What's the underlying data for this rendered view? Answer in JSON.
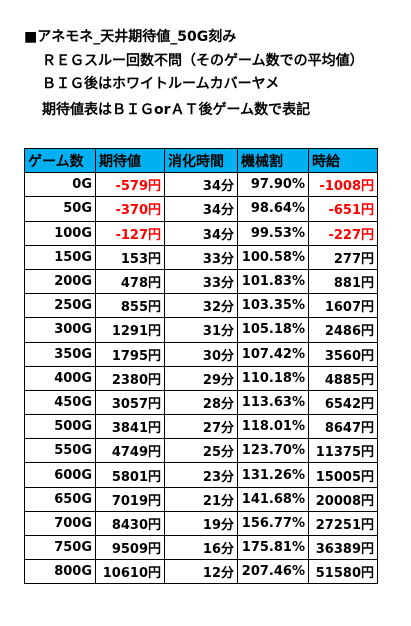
{
  "notes": {
    "line1": "■アネモネ_天井期待値_50G刻み",
    "line2": "ＲＥＧスルー回数不問（そのゲーム数での平均値）",
    "line3": "ＢＩＧ後はホワイトルームカバーヤメ",
    "line4": "期待値表はＢＩＧorＡＴ後ゲーム数で表記"
  },
  "table": {
    "headers": [
      "ゲーム数",
      "期待値",
      "消化時間",
      "機械割",
      "時給"
    ],
    "rows": [
      {
        "games": "0G",
        "ev": "-579円",
        "time": "34分",
        "payout": "97.90%",
        "hourly": "-1008円",
        "ev_neg": true,
        "hourly_neg": true
      },
      {
        "games": "50G",
        "ev": "-370円",
        "time": "34分",
        "payout": "98.64%",
        "hourly": "-651円",
        "ev_neg": true,
        "hourly_neg": true
      },
      {
        "games": "100G",
        "ev": "-127円",
        "time": "34分",
        "payout": "99.53%",
        "hourly": "-227円",
        "ev_neg": true,
        "hourly_neg": true
      },
      {
        "games": "150G",
        "ev": "153円",
        "time": "33分",
        "payout": "100.58%",
        "hourly": "277円",
        "ev_neg": false,
        "hourly_neg": false
      },
      {
        "games": "200G",
        "ev": "478円",
        "time": "33分",
        "payout": "101.83%",
        "hourly": "881円",
        "ev_neg": false,
        "hourly_neg": false
      },
      {
        "games": "250G",
        "ev": "855円",
        "time": "32分",
        "payout": "103.35%",
        "hourly": "1607円",
        "ev_neg": false,
        "hourly_neg": false
      },
      {
        "games": "300G",
        "ev": "1291円",
        "time": "31分",
        "payout": "105.18%",
        "hourly": "2486円",
        "ev_neg": false,
        "hourly_neg": false
      },
      {
        "games": "350G",
        "ev": "1795円",
        "time": "30分",
        "payout": "107.42%",
        "hourly": "3560円",
        "ev_neg": false,
        "hourly_neg": false
      },
      {
        "games": "400G",
        "ev": "2380円",
        "time": "29分",
        "payout": "110.18%",
        "hourly": "4885円",
        "ev_neg": false,
        "hourly_neg": false
      },
      {
        "games": "450G",
        "ev": "3057円",
        "time": "28分",
        "payout": "113.63%",
        "hourly": "6542円",
        "ev_neg": false,
        "hourly_neg": false
      },
      {
        "games": "500G",
        "ev": "3841円",
        "time": "27分",
        "payout": "118.01%",
        "hourly": "8647円",
        "ev_neg": false,
        "hourly_neg": false
      },
      {
        "games": "550G",
        "ev": "4749円",
        "time": "25分",
        "payout": "123.70%",
        "hourly": "11375円",
        "ev_neg": false,
        "hourly_neg": false
      },
      {
        "games": "600G",
        "ev": "5801円",
        "time": "23分",
        "payout": "131.26%",
        "hourly": "15005円",
        "ev_neg": false,
        "hourly_neg": false
      },
      {
        "games": "650G",
        "ev": "7019円",
        "time": "21分",
        "payout": "141.68%",
        "hourly": "20008円",
        "ev_neg": false,
        "hourly_neg": false
      },
      {
        "games": "700G",
        "ev": "8430円",
        "time": "19分",
        "payout": "156.77%",
        "hourly": "27251円",
        "ev_neg": false,
        "hourly_neg": false
      },
      {
        "games": "750G",
        "ev": "9509円",
        "time": "16分",
        "payout": "175.81%",
        "hourly": "36389円",
        "ev_neg": false,
        "hourly_neg": false
      },
      {
        "games": "800G",
        "ev": "10610円",
        "time": "12分",
        "payout": "207.46%",
        "hourly": "51580円",
        "ev_neg": false,
        "hourly_neg": false
      }
    ]
  },
  "colors": {
    "header_bg": "#00b0f0",
    "negative": "#ff0000"
  }
}
